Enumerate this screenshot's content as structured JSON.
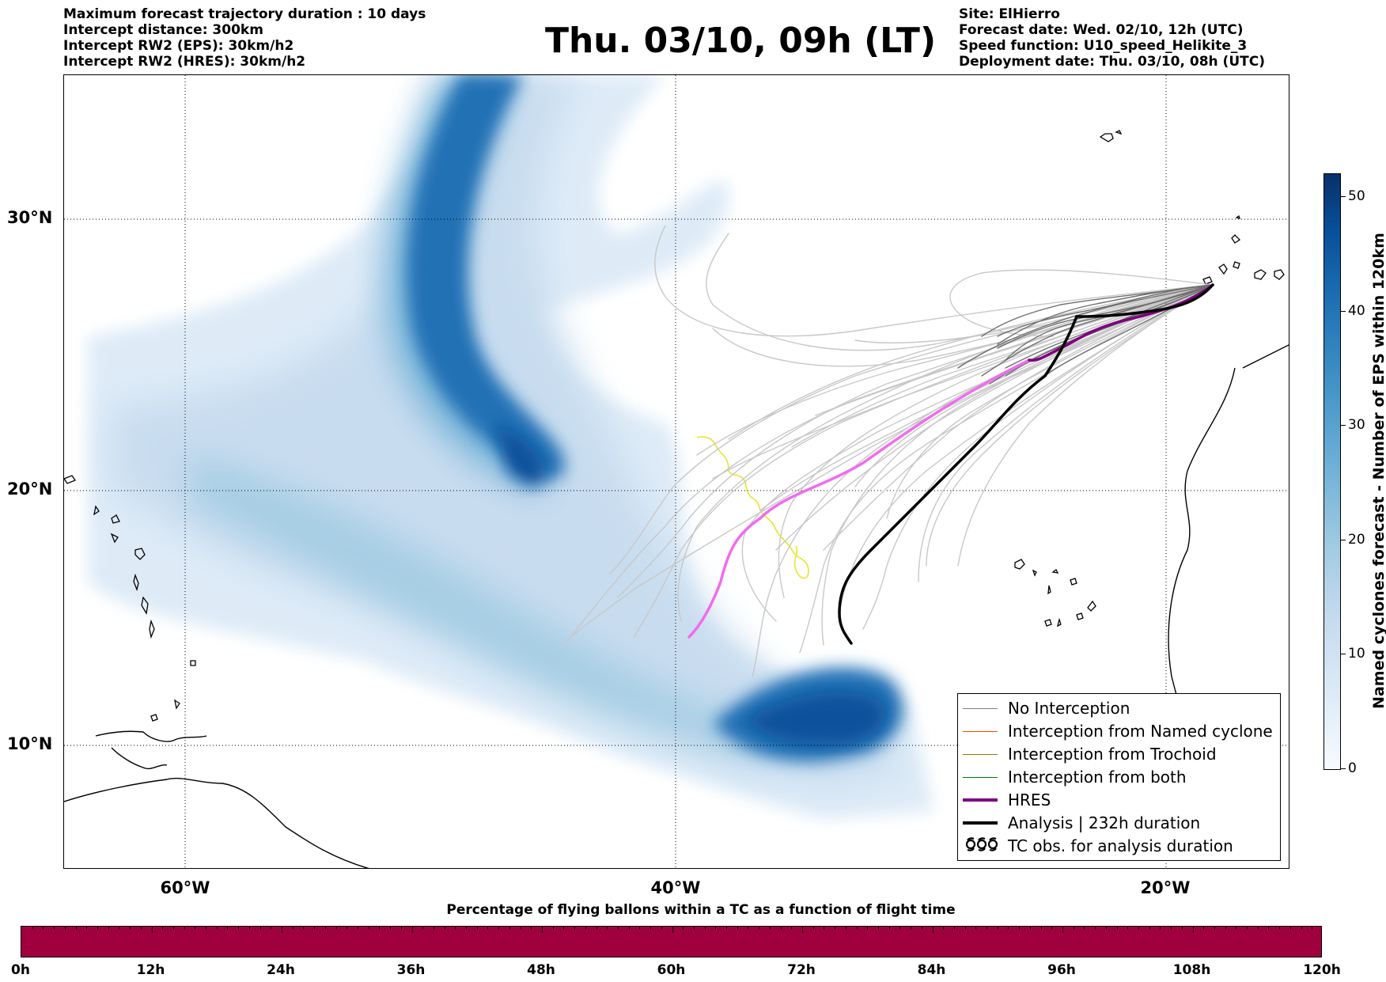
{
  "header": {
    "left_lines": [
      "Maximum forecast trajectory duration : 10 days",
      "Intercept distance: 300km",
      "Intercept RW2 (EPS):  30km/h2",
      "Intercept RW2 (HRES): 30km/h2"
    ],
    "title": "Thu. 03/10, 09h (LT)",
    "right_lines": [
      "Site: ElHierro",
      "Forecast date: Wed. 02/10, 12h (UTC)",
      "Speed function: U10_speed_Helikite_3",
      "Deployment date: Thu. 03/10, 08h (UTC)"
    ]
  },
  "map": {
    "lat_labels": [
      "30°N",
      "20°N",
      "10°N"
    ],
    "lon_labels": [
      "60°W",
      "40°W",
      "20°W"
    ]
  },
  "legend": {
    "items": [
      {
        "label": "No Interception",
        "color": "#808080"
      },
      {
        "label": "Interception from Named cyclone",
        "color": "#ff4500"
      },
      {
        "label": "Interception from Trochoid",
        "color": "#808000"
      },
      {
        "label": "Interception from both",
        "color": "#008000"
      },
      {
        "label": "HRES",
        "color": "#800080"
      },
      {
        "label": "Analysis | 232h duration",
        "color": "#000000"
      },
      {
        "label": "TC obs. for analysis duration",
        "symbol": "ᓀᓀᓀ"
      }
    ]
  },
  "colorbar": {
    "title": "Named cyclones forecast - Number of EPS within 120km",
    "ticks": [
      "50",
      "40",
      "30",
      "20",
      "10",
      "0"
    ],
    "range": [
      0,
      52
    ]
  },
  "time_bar": {
    "title": "Percentage of flying ballons within a TC as a function of flight time",
    "labels": [
      "0h",
      "12h",
      "24h",
      "36h",
      "48h",
      "60h",
      "72h",
      "84h",
      "96h",
      "108h",
      "120h"
    ],
    "color": "#a0003e"
  }
}
